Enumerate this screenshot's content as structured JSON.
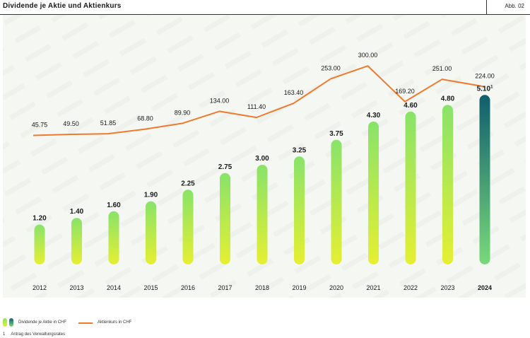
{
  "header": {
    "title": "Dividende je Aktie und Aktienkurs",
    "figure_label": "Abb. 02"
  },
  "legend": {
    "dividend_label": "Dividende je Aktie in CHF",
    "price_label": "Aktienkurs in CHF"
  },
  "footnote": {
    "marker": "1",
    "text": "Antrag des Verwaltungsrates"
  },
  "colors": {
    "bar_top": "#88e36a",
    "bar_bottom": "#e6ef32",
    "highlight_top": "#0f5e6e",
    "highlight_bottom": "#7ad97a",
    "price_line": "#f07a2c",
    "background_band": "#f4f6f2"
  },
  "chart_data": {
    "type": "bar",
    "categories": [
      "2012",
      "2013",
      "2014",
      "2015",
      "2016",
      "2017",
      "2018",
      "2019",
      "2020",
      "2021",
      "2022",
      "2023",
      "2024"
    ],
    "series": [
      {
        "name": "Dividende je Aktie in CHF",
        "type": "bar",
        "values": [
          1.2,
          1.4,
          1.6,
          1.9,
          2.25,
          2.75,
          3.0,
          3.25,
          3.75,
          4.3,
          4.6,
          4.8,
          5.1
        ],
        "labels": [
          "1.20",
          "1.40",
          "1.60",
          "1.90",
          "2.25",
          "2.75",
          "3.00",
          "3.25",
          "3.75",
          "4.30",
          "4.60",
          "4.80",
          "5.10"
        ],
        "highlight_index": 12,
        "highlight_superscript": "1"
      },
      {
        "name": "Aktienkurs in CHF",
        "type": "line",
        "values": [
          45.75,
          49.5,
          51.85,
          68.8,
          89.9,
          134.0,
          111.4,
          163.4,
          253.0,
          300.0,
          169.2,
          251.0,
          224.0
        ],
        "labels": [
          "45.75",
          "49.50",
          "51.85",
          "68.80",
          "89.90",
          "134.00",
          "111.40",
          "163.40",
          "253.00",
          "300.00",
          "169.20",
          "251.00",
          "224.00"
        ]
      }
    ],
    "bold_category_index": 12,
    "grid": false,
    "legend_position": "bottom-left"
  }
}
